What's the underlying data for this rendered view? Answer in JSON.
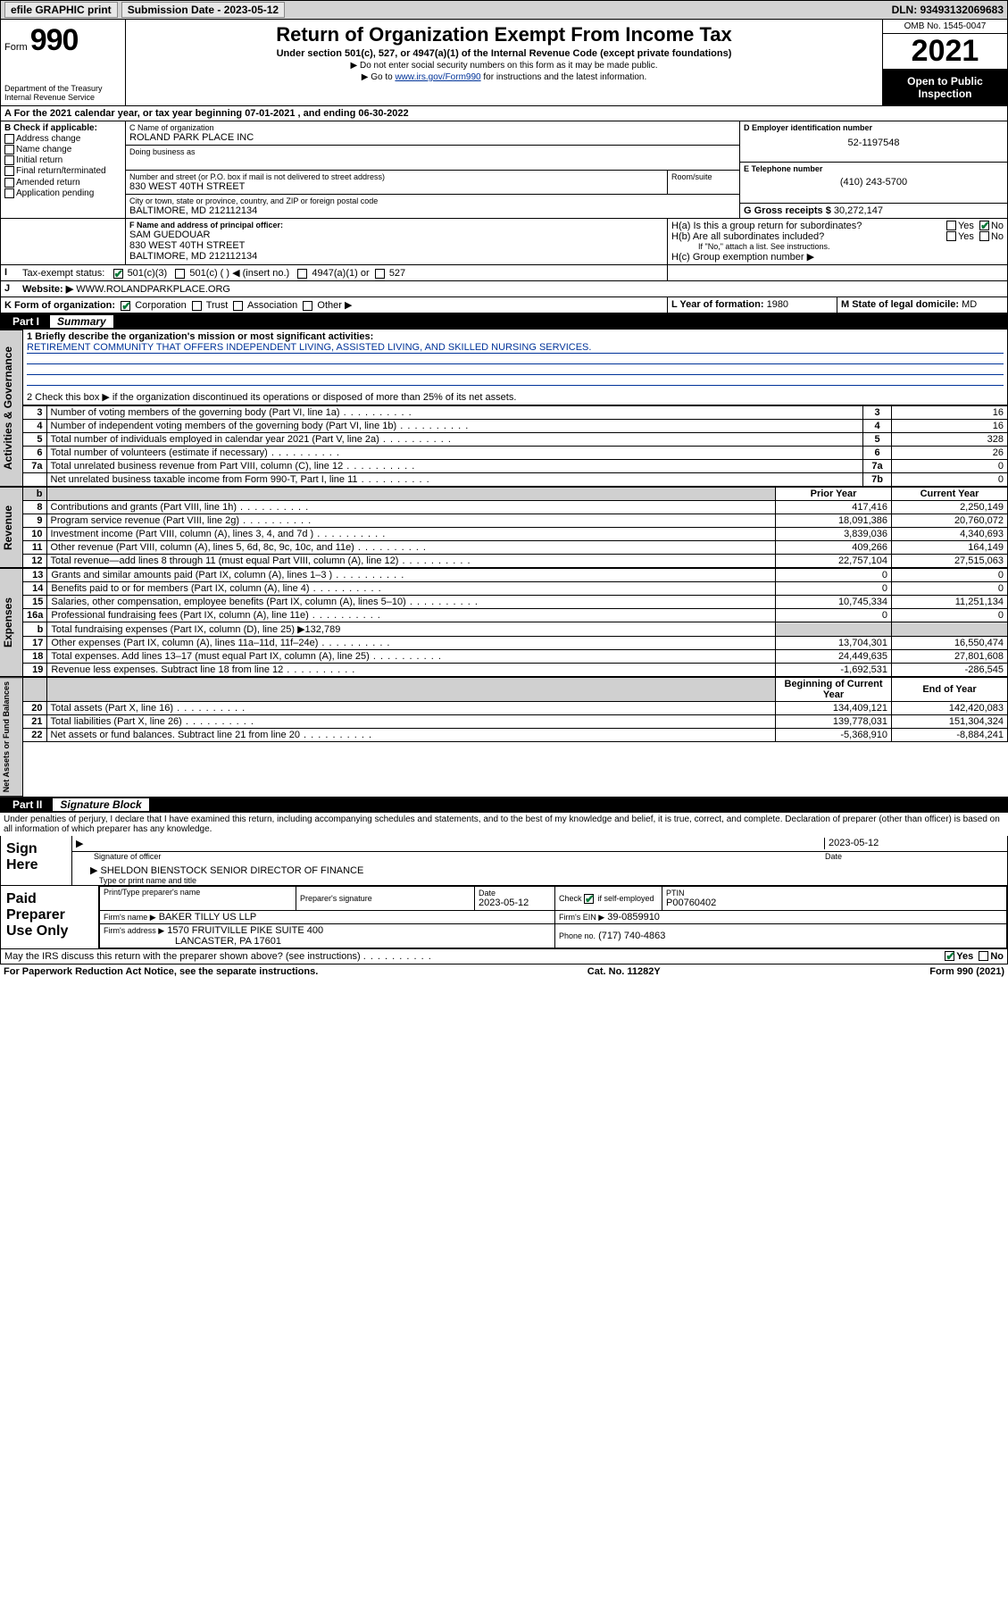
{
  "topbar": {
    "efile": "efile GRAPHIC print",
    "submission_label": "Submission Date - 2023-05-12",
    "dln_label": "DLN: 93493132069683"
  },
  "header": {
    "form_word": "Form",
    "form_num": "990",
    "dept": "Department of the Treasury\nInternal Revenue Service",
    "title": "Return of Organization Exempt From Income Tax",
    "subtitle": "Under section 501(c), 527, or 4947(a)(1) of the Internal Revenue Code (except private foundations)",
    "note1": "▶ Do not enter social security numbers on this form as it may be made public.",
    "note2_pre": "▶ Go to ",
    "note2_link": "www.irs.gov/Form990",
    "note2_post": " for instructions and the latest information.",
    "omb": "OMB No. 1545-0047",
    "year": "2021",
    "open": "Open to Public Inspection"
  },
  "A": {
    "text": "A For the 2021 calendar year, or tax year beginning 07-01-2021   , and ending 06-30-2022"
  },
  "B": {
    "label": "B Check if applicable:",
    "items": [
      "Address change",
      "Name change",
      "Initial return",
      "Final return/terminated",
      "Amended return",
      "Application pending"
    ]
  },
  "C": {
    "name_label": "C Name of organization",
    "name": "ROLAND PARK PLACE INC",
    "dba_label": "Doing business as",
    "dba": "",
    "addr_label": "Number and street (or P.O. box if mail is not delivered to street address)",
    "room_label": "Room/suite",
    "addr": "830 WEST 40TH STREET",
    "city_label": "City or town, state or province, country, and ZIP or foreign postal code",
    "city": "BALTIMORE, MD  212112134"
  },
  "D": {
    "label": "D Employer identification number",
    "value": "52-1197548"
  },
  "E": {
    "label": "E Telephone number",
    "value": "(410) 243-5700"
  },
  "G": {
    "label": "G Gross receipts $",
    "value": "30,272,147"
  },
  "F": {
    "label": "F Name and address of principal officer:",
    "name": "SAM GUEDOUAR",
    "addr1": "830 WEST 40TH STREET",
    "addr2": "BALTIMORE, MD  212112134"
  },
  "H": {
    "a": "H(a)  Is this a group return for subordinates?",
    "b": "H(b)  Are all subordinates included?",
    "b_note": "If \"No,\" attach a list. See instructions.",
    "c": "H(c)  Group exemption number ▶",
    "yes": "Yes",
    "no": "No"
  },
  "I": {
    "label": "Tax-exempt status:",
    "c3": "501(c)(3)",
    "c": "501(c) (   ) ◀ (insert no.)",
    "a1": "4947(a)(1) or",
    "s527": "527"
  },
  "J": {
    "label": "Website: ▶",
    "value": "WWW.ROLANDPARKPLACE.ORG"
  },
  "K": {
    "label": "K Form of organization:",
    "corp": "Corporation",
    "trust": "Trust",
    "assoc": "Association",
    "other": "Other ▶"
  },
  "L": {
    "label": "L Year of formation:",
    "value": "1980"
  },
  "M": {
    "label": "M State of legal domicile:",
    "value": "MD"
  },
  "part1": {
    "num": "Part I",
    "title": "Summary"
  },
  "summary": {
    "l1_label": "1  Briefly describe the organization's mission or most significant activities:",
    "l1_text": "RETIREMENT COMMUNITY THAT OFFERS INDEPENDENT LIVING, ASSISTED LIVING, AND SKILLED NURSING SERVICES.",
    "l2": "2   Check this box ▶        if the organization discontinued its operations or disposed of more than 25% of its net assets.",
    "rows_gov": [
      {
        "n": "3",
        "d": "Number of voting members of the governing body (Part VI, line 1a)",
        "box": "3",
        "v": "16"
      },
      {
        "n": "4",
        "d": "Number of independent voting members of the governing body (Part VI, line 1b)",
        "box": "4",
        "v": "16"
      },
      {
        "n": "5",
        "d": "Total number of individuals employed in calendar year 2021 (Part V, line 2a)",
        "box": "5",
        "v": "328"
      },
      {
        "n": "6",
        "d": "Total number of volunteers (estimate if necessary)",
        "box": "6",
        "v": "26"
      },
      {
        "n": "7a",
        "d": "Total unrelated business revenue from Part VIII, column (C), line 12",
        "box": "7a",
        "v": "0"
      },
      {
        "n": "",
        "d": "Net unrelated business taxable income from Form 990-T, Part I, line 11",
        "box": "7b",
        "v": "0"
      }
    ],
    "col_prior": "Prior Year",
    "col_current": "Current Year",
    "rows_rev": [
      {
        "n": "8",
        "d": "Contributions and grants (Part VIII, line 1h)",
        "p": "417,416",
        "c": "2,250,149"
      },
      {
        "n": "9",
        "d": "Program service revenue (Part VIII, line 2g)",
        "p": "18,091,386",
        "c": "20,760,072"
      },
      {
        "n": "10",
        "d": "Investment income (Part VIII, column (A), lines 3, 4, and 7d )",
        "p": "3,839,036",
        "c": "4,340,693"
      },
      {
        "n": "11",
        "d": "Other revenue (Part VIII, column (A), lines 5, 6d, 8c, 9c, 10c, and 11e)",
        "p": "409,266",
        "c": "164,149"
      },
      {
        "n": "12",
        "d": "Total revenue—add lines 8 through 11 (must equal Part VIII, column (A), line 12)",
        "p": "22,757,104",
        "c": "27,515,063"
      }
    ],
    "rows_exp": [
      {
        "n": "13",
        "d": "Grants and similar amounts paid (Part IX, column (A), lines 1–3 )",
        "p": "0",
        "c": "0"
      },
      {
        "n": "14",
        "d": "Benefits paid to or for members (Part IX, column (A), line 4)",
        "p": "0",
        "c": "0"
      },
      {
        "n": "15",
        "d": "Salaries, other compensation, employee benefits (Part IX, column (A), lines 5–10)",
        "p": "10,745,334",
        "c": "11,251,134"
      },
      {
        "n": "16a",
        "d": "Professional fundraising fees (Part IX, column (A), line 11e)",
        "p": "0",
        "c": "0"
      },
      {
        "n": "b",
        "d": "Total fundraising expenses (Part IX, column (D), line 25) ▶132,789",
        "p": "",
        "c": "",
        "shade": true
      },
      {
        "n": "17",
        "d": "Other expenses (Part IX, column (A), lines 11a–11d, 11f–24e)",
        "p": "13,704,301",
        "c": "16,550,474"
      },
      {
        "n": "18",
        "d": "Total expenses. Add lines 13–17 (must equal Part IX, column (A), line 25)",
        "p": "24,449,635",
        "c": "27,801,608"
      },
      {
        "n": "19",
        "d": "Revenue less expenses. Subtract line 18 from line 12",
        "p": "-1,692,531",
        "c": "-286,545"
      }
    ],
    "col_begin": "Beginning of Current Year",
    "col_end": "End of Year",
    "rows_net": [
      {
        "n": "20",
        "d": "Total assets (Part X, line 16)",
        "p": "134,409,121",
        "c": "142,420,083"
      },
      {
        "n": "21",
        "d": "Total liabilities (Part X, line 26)",
        "p": "139,778,031",
        "c": "151,304,324"
      },
      {
        "n": "22",
        "d": "Net assets or fund balances. Subtract line 21 from line 20",
        "p": "-5,368,910",
        "c": "-8,884,241"
      }
    ],
    "vtabs": {
      "gov": "Activities & Governance",
      "rev": "Revenue",
      "exp": "Expenses",
      "net": "Net Assets or Fund Balances"
    }
  },
  "part2": {
    "num": "Part II",
    "title": "Signature Block"
  },
  "sig": {
    "penalties": "Under penalties of perjury, I declare that I have examined this return, including accompanying schedules and statements, and to the best of my knowledge and belief, it is true, correct, and complete. Declaration of preparer (other than officer) is based on all information of which preparer has any knowledge.",
    "sign_here": "Sign Here",
    "sig_officer": "Signature of officer",
    "date": "Date",
    "date_val": "2023-05-12",
    "name_title": "SHELDON BIENSTOCK  SENIOR DIRECTOR OF FINANCE",
    "name_title_label": "Type or print name and title",
    "paid": "Paid Preparer Use Only",
    "pt_name_label": "Print/Type preparer's name",
    "pt_sig_label": "Preparer's signature",
    "pt_date_label": "Date",
    "pt_date": "2023-05-12",
    "pt_check": "Check         if self-employed",
    "ptin_label": "PTIN",
    "ptin": "P00760402",
    "firm_name_label": "Firm's name     ▶",
    "firm_name": "BAKER TILLY US LLP",
    "firm_ein_label": "Firm's EIN ▶",
    "firm_ein": "39-0859910",
    "firm_addr_label": "Firm's address ▶",
    "firm_addr1": "1570 FRUITVILLE PIKE SUITE 400",
    "firm_addr2": "LANCASTER, PA  17601",
    "phone_label": "Phone no.",
    "phone": "(717) 740-4863",
    "may_irs": "May the IRS discuss this return with the preparer shown above? (see instructions)",
    "yes": "Yes",
    "no": "No"
  },
  "footer": {
    "left": "For Paperwork Reduction Act Notice, see the separate instructions.",
    "mid": "Cat. No. 11282Y",
    "right": "Form 990 (2021)"
  },
  "colors": {
    "link": "#003399",
    "check_green": "#0a7a3a",
    "shade": "#d0d0d0"
  }
}
